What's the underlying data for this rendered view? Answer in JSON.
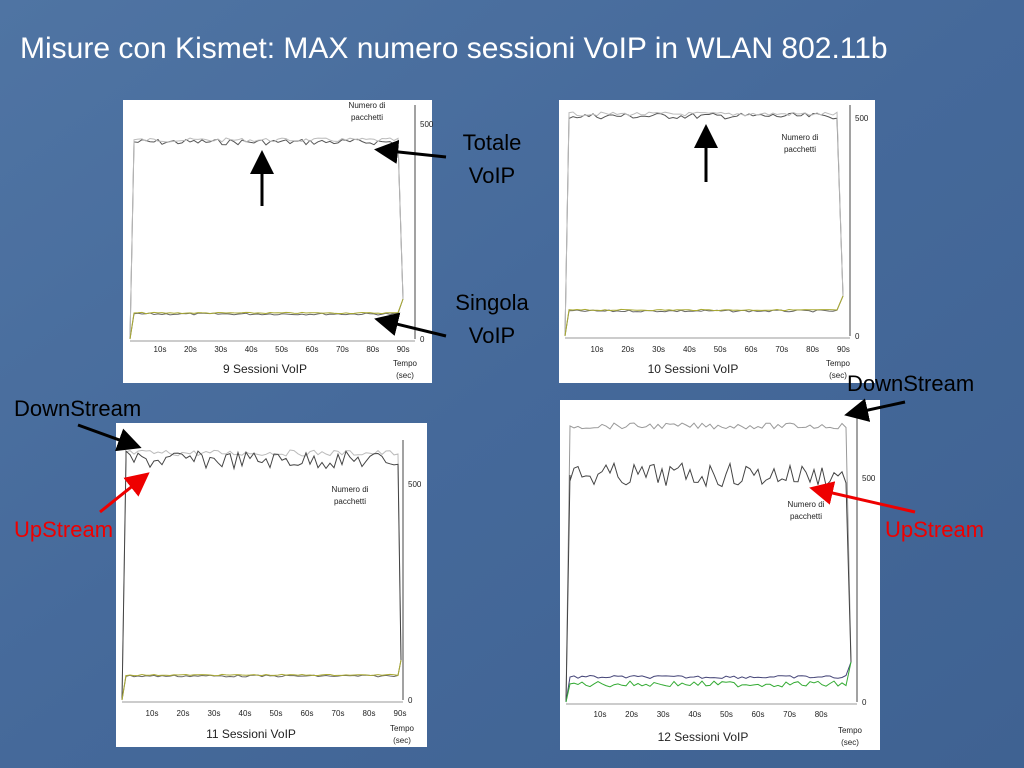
{
  "title": "Misure con Kismet: MAX numero sessioni VoIP in WLAN 802.11b",
  "annotations": {
    "totale": [
      "Totale",
      "VoIP"
    ],
    "singola": [
      "Singola",
      "VoIP"
    ],
    "downstream_left": "DownStream",
    "upstream_left": "UpStream",
    "downstream_right": "DownStream",
    "upstream_right": "UpStream"
  },
  "panels": [
    {
      "caption": "9 Sessioni VoIP",
      "y_label": [
        "Numero di",
        "pacchetti"
      ],
      "x_label": [
        "Tempo",
        "(sec)"
      ],
      "x_ticks": [
        "10s",
        "20s",
        "30s",
        "40s",
        "50s",
        "60s",
        "70s",
        "80s",
        "90s"
      ],
      "y_ticks": [
        "500",
        "0"
      ]
    },
    {
      "caption": "10 Sessioni VoIP",
      "y_label": [
        "Numero di",
        "pacchetti"
      ],
      "x_label": [
        "Tempo",
        "(sec)"
      ],
      "x_ticks": [
        "10s",
        "20s",
        "30s",
        "40s",
        "50s",
        "60s",
        "70s",
        "80s",
        "90s"
      ],
      "y_ticks": [
        "500",
        "0"
      ]
    },
    {
      "caption": "11 Sessioni VoIP",
      "y_label": [
        "Numero di",
        "pacchetti"
      ],
      "x_label": [
        "Tempo",
        "(sec)"
      ],
      "x_ticks": [
        "10s",
        "20s",
        "30s",
        "40s",
        "50s",
        "60s",
        "70s",
        "80s",
        "90s"
      ],
      "y_ticks": [
        "500",
        "0"
      ]
    },
    {
      "caption": "12 Sessioni VoIP",
      "y_label": [
        "Numero di",
        "pacchetti"
      ],
      "x_label": [
        "Tempo",
        "(sec)"
      ],
      "x_ticks": [
        "10s",
        "20s",
        "30s",
        "40s",
        "50s",
        "60s",
        "70s",
        "80s"
      ],
      "y_ticks": [
        "500",
        "0"
      ]
    }
  ]
}
